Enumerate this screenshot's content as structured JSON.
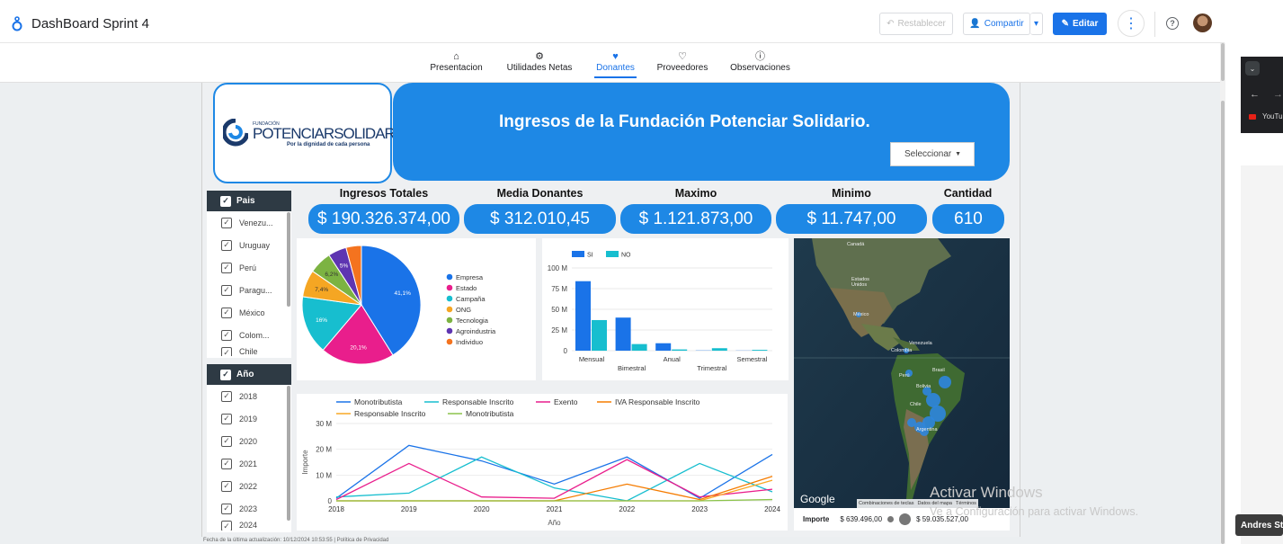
{
  "app": {
    "title": "DashBoard Sprint 4",
    "restablecer": "Restablecer",
    "compartir": "Compartir",
    "editar": "Editar"
  },
  "tabs": [
    {
      "label": "Presentacion",
      "icon": "home-icon"
    },
    {
      "label": "Utilidades Netas",
      "icon": "gear-icon"
    },
    {
      "label": "Donantes",
      "icon": "heart-icon",
      "active": true
    },
    {
      "label": "Proveedores",
      "icon": "heart-outline-icon"
    },
    {
      "label": "Observaciones",
      "icon": "info-icon"
    }
  ],
  "logo": {
    "top": "FUNDACIÓN",
    "name_a": "POTENCIAR",
    "name_b": "SOLIDARIO",
    "tagline": "Por la dignidad de cada persona"
  },
  "header": {
    "title": "Ingresos de la Fundación Potenciar Solidario.",
    "select_value": "Seleccionar"
  },
  "kpis": [
    {
      "label": "Ingresos Totales",
      "value": "$ 190.326.374,00"
    },
    {
      "label": "Media Donantes",
      "value": "$ 312.010,45"
    },
    {
      "label": "Maximo",
      "value": "$ 1.121.873,00"
    },
    {
      "label": "Minimo",
      "value": "$ 11.747,00"
    },
    {
      "label": "Cantidad",
      "value": "610"
    }
  ],
  "filters": {
    "pais": {
      "label": "Pais",
      "items": [
        "Venezu...",
        "Uruguay",
        "Perú",
        "Paragu...",
        "México",
        "Colom...",
        "Chile"
      ]
    },
    "anio": {
      "label": "Año",
      "items": [
        "2018",
        "2019",
        "2020",
        "2021",
        "2022",
        "2023",
        "2024"
      ]
    }
  },
  "chart_data": [
    {
      "type": "pie",
      "title": "",
      "categories": [
        "Empresa",
        "Estado",
        "Campaña",
        "ONG",
        "Tecnologia",
        "Agroindustria",
        "Individuo"
      ],
      "values": [
        41.1,
        20.1,
        16.0,
        7.4,
        6.2,
        5.0,
        4.2
      ],
      "labels": [
        "41,1%",
        "20,1%",
        "16%",
        "7,4%",
        "6,2%",
        "5%",
        ""
      ],
      "colors": [
        "#1a73e8",
        "#e91e8c",
        "#17becf",
        "#f5a623",
        "#7cb342",
        "#5e35b1",
        "#f4731f"
      ],
      "legend": "right"
    },
    {
      "type": "bar",
      "title": "",
      "categories": [
        "Mensual",
        "Bimestral",
        "Anual",
        "Trimestral",
        "Semestral"
      ],
      "series": [
        {
          "name": "SI",
          "values": [
            84,
            40,
            9,
            0.3,
            0.2
          ],
          "color": "#1a73e8"
        },
        {
          "name": "NO",
          "values": [
            37,
            8,
            1.5,
            3,
            1
          ],
          "color": "#17becf"
        }
      ],
      "yticks": [
        "0",
        "25 M",
        "50 M",
        "75 M",
        "100 M"
      ],
      "ylim": [
        0,
        100
      ],
      "legend": "top-left"
    },
    {
      "type": "line",
      "title": "",
      "xlabel": "Año",
      "ylabel": "Importe",
      "x": [
        2018,
        2019,
        2020,
        2021,
        2022,
        2023,
        2024
      ],
      "yticks": [
        "0",
        "10 M",
        "20 M",
        "30 M"
      ],
      "ylim": [
        0,
        30
      ],
      "series": [
        {
          "name": "Monotributista",
          "color": "#1a73e8",
          "values": [
            1,
            21.5,
            15.5,
            6.5,
            17,
            1,
            18
          ]
        },
        {
          "name": "Responsable Inscrito",
          "color": "#17becf",
          "values": [
            1.5,
            3,
            17,
            5,
            0,
            14.5,
            3.5
          ]
        },
        {
          "name": "Exento",
          "color": "#e91e8c",
          "values": [
            0.5,
            14.5,
            1.5,
            1,
            16,
            1.5,
            4.5
          ]
        },
        {
          "name": "IVA Responsable Inscrito",
          "color": "#f57c00",
          "values": [
            0,
            0,
            0,
            0,
            6.5,
            0.5,
            9.5
          ]
        },
        {
          "name": "Responsable Inscrito",
          "color": "#f9a825",
          "values": [
            0,
            0,
            0,
            0,
            0,
            0,
            8
          ]
        },
        {
          "name": "Monotributista",
          "color": "#8bc34a",
          "values": [
            0,
            0,
            0,
            0,
            0,
            0,
            0.5
          ]
        }
      ],
      "legend": "top"
    }
  ],
  "map": {
    "labels": [
      "Canadá",
      "Estados Unidos",
      "México",
      "Venezuela",
      "Colombia",
      "Perú",
      "Brasil",
      "Bolivia",
      "Chile",
      "Argentina"
    ],
    "brand": "Google",
    "attributions": [
      "Combinaciones de teclas",
      "Datos del mapa",
      "Términos"
    ],
    "legend_label": "Importe",
    "legend_min": "$ 639.496,00",
    "legend_max": "$ 59.035.527,00"
  },
  "footer": "Fecha de la última actualización: 10/12/2024 10:53:55 | Política de Privacidad",
  "windows": {
    "watermark_title": "Activar Windows",
    "watermark_sub": "Ve a Configuración para activar Windows.",
    "user": "Andres Ste",
    "youtube": "YouTu"
  }
}
